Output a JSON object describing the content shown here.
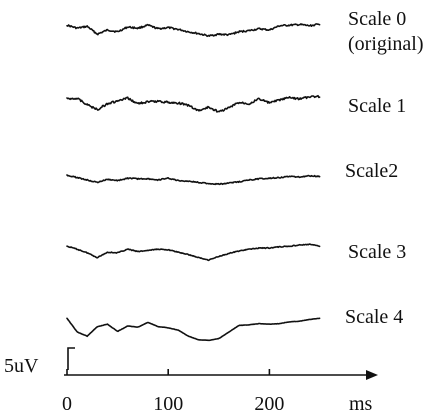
{
  "chart_data": {
    "type": "line",
    "xlabel": "ms",
    "x_ticks": [
      0,
      100,
      200
    ],
    "xlim": [
      0,
      250
    ],
    "scale_bar_label": "5uV",
    "series": [
      {
        "name": "Scale 0",
        "name_line2": "(original)",
        "x": [
          0,
          10,
          20,
          30,
          40,
          50,
          60,
          70,
          80,
          90,
          100,
          110,
          120,
          130,
          140,
          150,
          160,
          170,
          180,
          190,
          200,
          210,
          220,
          230,
          240,
          250
        ],
        "values": [
          0.3,
          -0.2,
          0.1,
          -1.2,
          -0.5,
          -0.8,
          0.0,
          -0.2,
          0.3,
          -0.3,
          -0.1,
          -0.4,
          -0.8,
          -1.1,
          -1.5,
          -1.2,
          -1.3,
          -0.8,
          -0.6,
          -0.3,
          -0.5,
          0.2,
          0.3,
          0.4,
          0.2,
          0.5
        ]
      },
      {
        "name": "Scale 1",
        "x": [
          0,
          10,
          20,
          30,
          40,
          50,
          60,
          70,
          80,
          90,
          100,
          110,
          120,
          130,
          140,
          150,
          160,
          170,
          180,
          190,
          200,
          210,
          220,
          230,
          240,
          250
        ],
        "values": [
          0.2,
          0.3,
          -0.8,
          -1.6,
          -0.6,
          -0.2,
          0.3,
          -0.6,
          -0.3,
          -0.2,
          -0.4,
          -0.5,
          -0.9,
          -1.8,
          -1.2,
          -2.0,
          -1.3,
          -0.4,
          -0.6,
          0.2,
          -0.5,
          0.0,
          0.4,
          0.2,
          0.5,
          0.6
        ]
      },
      {
        "name": "Scale2",
        "x": [
          0,
          10,
          20,
          30,
          40,
          50,
          60,
          70,
          80,
          90,
          100,
          110,
          120,
          130,
          140,
          150,
          160,
          170,
          180,
          190,
          200,
          210,
          220,
          230,
          240,
          250
        ],
        "values": [
          0.3,
          -0.1,
          -0.5,
          -0.9,
          -0.4,
          -0.6,
          -0.2,
          -0.3,
          -0.3,
          -0.5,
          -0.2,
          -0.6,
          -0.7,
          -0.9,
          -1.1,
          -1.2,
          -1.0,
          -0.8,
          -0.5,
          -0.3,
          -0.2,
          -0.1,
          0.1,
          0.0,
          0.2,
          0.1
        ]
      },
      {
        "name": "Scale 3",
        "x": [
          0,
          10,
          20,
          30,
          40,
          50,
          60,
          70,
          80,
          90,
          100,
          110,
          120,
          130,
          140,
          150,
          160,
          170,
          180,
          190,
          200,
          210,
          220,
          230,
          240,
          250
        ],
        "values": [
          0.3,
          -0.2,
          -0.8,
          -1.6,
          -0.7,
          -0.8,
          -0.2,
          -0.6,
          -0.4,
          -0.2,
          -0.3,
          -0.7,
          -1.1,
          -1.6,
          -2.0,
          -1.4,
          -0.9,
          -0.5,
          -0.2,
          0.0,
          0.0,
          0.2,
          0.3,
          0.5,
          0.6,
          0.3
        ]
      },
      {
        "name": "Scale 4",
        "x": [
          0,
          10,
          20,
          30,
          40,
          50,
          60,
          70,
          80,
          90,
          100,
          110,
          120,
          130,
          140,
          150,
          160,
          170,
          180,
          190,
          200,
          210,
          220,
          230,
          240,
          250
        ],
        "values": [
          0.8,
          -1.5,
          -2.2,
          -0.6,
          -0.2,
          -1.4,
          -0.5,
          -0.7,
          0.1,
          -0.6,
          -0.8,
          -1.2,
          -2.2,
          -2.8,
          -2.9,
          -2.6,
          -1.5,
          -0.4,
          -0.3,
          -0.1,
          -0.2,
          -0.1,
          0.2,
          0.3,
          0.6,
          0.8
        ]
      }
    ]
  }
}
